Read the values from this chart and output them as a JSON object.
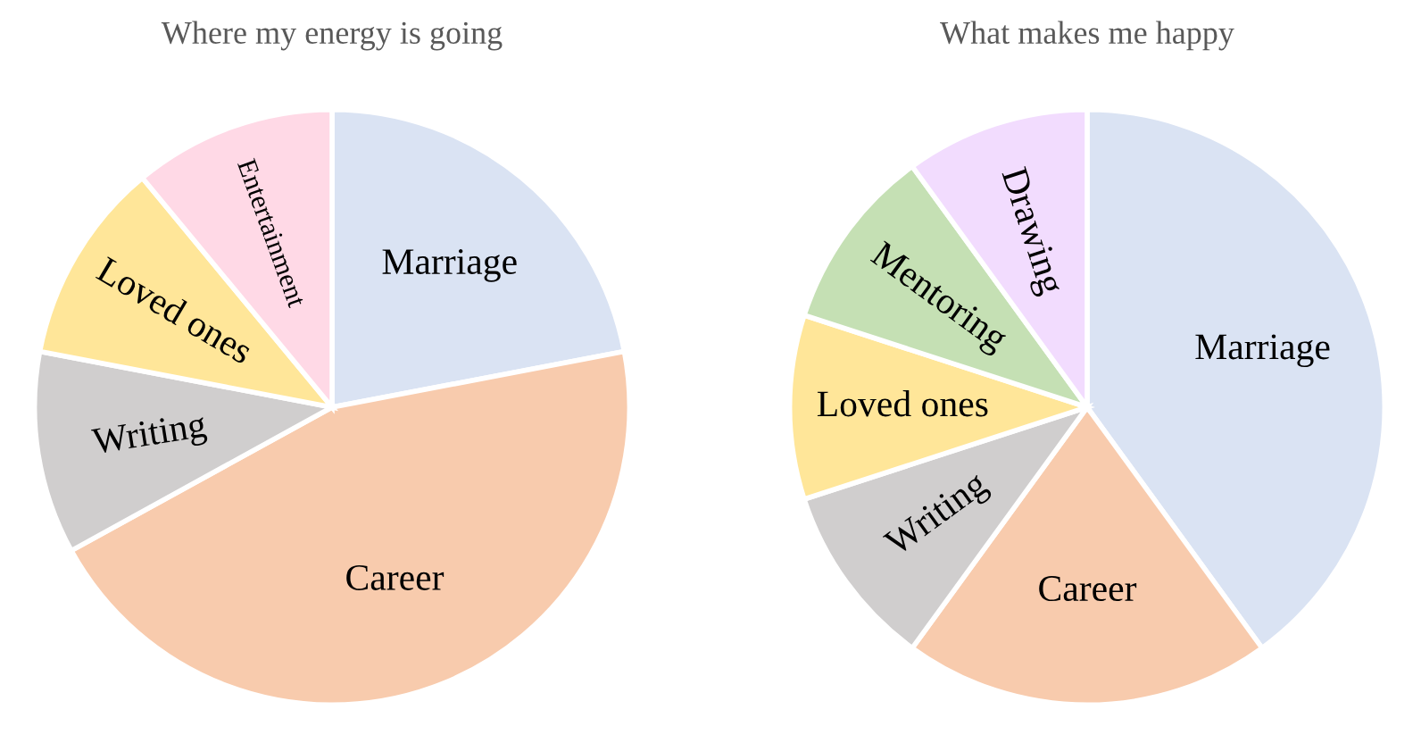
{
  "chart_data": [
    {
      "type": "pie",
      "title": "Where my energy is going",
      "categories": [
        "Marriage",
        "Career",
        "Writing",
        "Loved ones",
        "Entertainment"
      ],
      "values": [
        22,
        45,
        11,
        11,
        11
      ],
      "colors": [
        "#dae3f3",
        "#f8cbad",
        "#d0cece",
        "#ffe699",
        "#ffd9e6"
      ]
    },
    {
      "type": "pie",
      "title": "What makes me happy",
      "categories": [
        "Marriage",
        "Career",
        "Writing",
        "Loved ones",
        "Mentoring",
        "Drawing"
      ],
      "values": [
        40,
        20,
        10,
        10,
        10,
        10
      ],
      "colors": [
        "#dae3f3",
        "#f8cbad",
        "#d0cece",
        "#ffe699",
        "#c5e0b4",
        "#f2dcfe"
      ]
    }
  ]
}
